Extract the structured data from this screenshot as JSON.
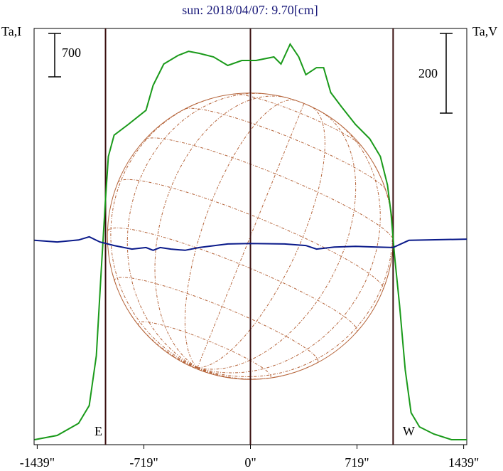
{
  "chart_data": {
    "type": "line",
    "title": "sun: 2018/04/07: 9.70[cm]",
    "y_label": "Ta,I",
    "y2_label": "Ta,V",
    "xlim": [
      -1460,
      1460
    ],
    "ylim": [
      0,
      6716
    ],
    "y2lim": [
      -509,
      536
    ],
    "xticks": [
      {
        "value": -1439,
        "label": "-1439\""
      },
      {
        "value": -719,
        "label": "-719\""
      },
      {
        "value": 0,
        "label": "0\""
      },
      {
        "value": 719,
        "label": "719\""
      },
      {
        "value": 1439,
        "label": "1439\""
      }
    ],
    "limbs": [
      {
        "x": -978,
        "label": "E"
      },
      {
        "x": 0
      },
      {
        "x": 963,
        "label": "W"
      }
    ],
    "disc_radius": 965,
    "scale_bars": [
      {
        "value": 700,
        "label": "700"
      },
      {
        "value": 200,
        "label": "200",
        "axis": "y2"
      }
    ],
    "series": [
      {
        "name": "Ta,I",
        "color": "#1a9a1a",
        "x": [
          -1457,
          -1304,
          -1160,
          -1088,
          -1040,
          -1007,
          -978,
          -959,
          -920,
          -825,
          -705,
          -657,
          -585,
          -489,
          -417,
          -345,
          -249,
          -153,
          -58,
          38,
          158,
          206,
          268,
          326,
          374,
          446,
          494,
          542,
          614,
          709,
          805,
          877,
          925,
          949,
          973,
          1007,
          1045,
          1084,
          1141,
          1237,
          1357,
          1460
        ],
        "values": [
          80,
          149,
          344,
          631,
          1435,
          2813,
          3961,
          4649,
          4994,
          5166,
          5396,
          5797,
          6142,
          6280,
          6348,
          6314,
          6257,
          6119,
          6199,
          6199,
          6257,
          6142,
          6463,
          6257,
          5970,
          6084,
          6084,
          5683,
          5453,
          5166,
          4936,
          4649,
          4190,
          3731,
          3042,
          2239,
          1205,
          517,
          287,
          172,
          80,
          80
        ]
      },
      {
        "name": "Ta,V",
        "color": "#0a1a8a",
        "axis": "y2",
        "x": [
          -1457,
          -1304,
          -1160,
          -1088,
          -1016,
          -920,
          -800,
          -705,
          -657,
          -609,
          -537,
          -441,
          -345,
          -153,
          0,
          230,
          374,
          446,
          566,
          709,
          853,
          963,
          1069,
          1189,
          1460
        ],
        "values": [
          4,
          0,
          5,
          13,
          0,
          -9,
          -18,
          -14,
          -21,
          -14,
          -18,
          -21,
          -14,
          -5,
          -4,
          -5,
          -9,
          -18,
          -13,
          -11,
          -13,
          -14,
          4,
          5,
          7
        ]
      }
    ]
  }
}
